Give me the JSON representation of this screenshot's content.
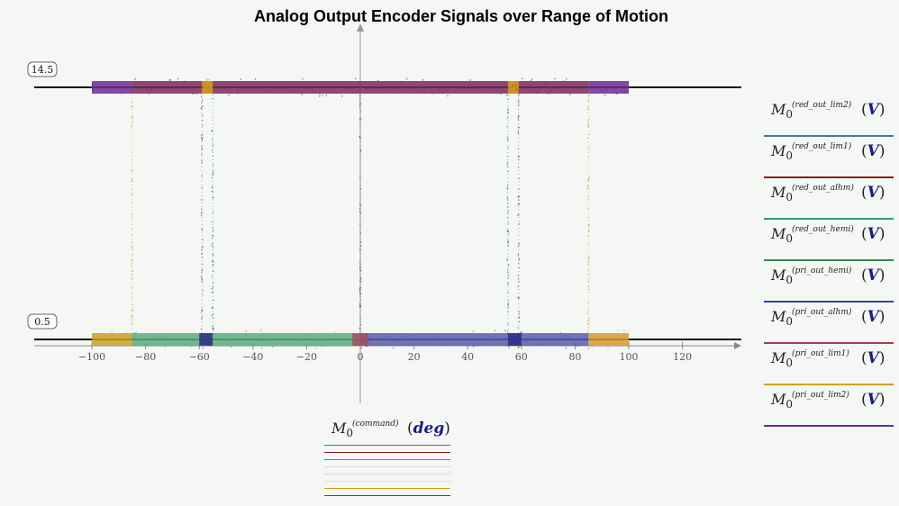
{
  "chart_data": {
    "type": "scatter",
    "title": "Analog Output Encoder Signals over Range of Motion",
    "xlabel": {
      "symbol": "M",
      "subscript": "0",
      "superscript": "(command)",
      "unit": "deg"
    },
    "xlim": [
      -120,
      140
    ],
    "ylim": [
      -2.5,
      17.5
    ],
    "x_ticks": [
      -100,
      -80,
      -60,
      -40,
      -20,
      0,
      20,
      40,
      60,
      80,
      100,
      120
    ],
    "x_tick_labels": [
      "−100",
      "−80",
      "−60",
      "−40",
      "−20",
      "0",
      "20",
      "40",
      "60",
      "80",
      "100",
      "120"
    ],
    "y_markers": [
      {
        "value": 14.5,
        "label": "14.5"
      },
      {
        "value": 0.5,
        "label": "0.5"
      }
    ],
    "grid": false,
    "legend_position": "right",
    "series": [
      {
        "name": "M0(red_out_lim2) (V)",
        "sub": "0",
        "sup": "(red_out_lim2)",
        "unit": "V",
        "color": "#3a7ca5",
        "segments": [
          {
            "x": [
              -100,
              0
            ],
            "y": 14.5
          },
          {
            "x": [
              0,
              100
            ],
            "y": 14.5
          }
        ]
      },
      {
        "name": "M0(red_out_lim1) (V)",
        "sub": "0",
        "sup": "(red_out_lim1)",
        "unit": "V",
        "color": "#8b1a1a",
        "segments": [
          {
            "x": [
              -100,
              100
            ],
            "y": 14.5
          }
        ]
      },
      {
        "name": "M0(red_out_alhm) (V)",
        "sub": "0",
        "sup": "(red_out_alhm)",
        "unit": "V",
        "color": "#2a9d8f",
        "segments": [
          {
            "x": [
              -100,
              100
            ],
            "y": 14.5
          }
        ]
      },
      {
        "name": "M0(red_out_hemi) (V)",
        "sub": "0",
        "sup": "(red_out_hemi)",
        "unit": "V",
        "color": "#2e8b57",
        "segments": [
          {
            "x": [
              -100,
              100
            ],
            "y": 14.5
          }
        ]
      },
      {
        "name": "M0(pri_out_hemi) (V)",
        "sub": "0",
        "sup": "(pri_out_hemi)",
        "unit": "V",
        "color": "#3b3bb0",
        "segments": [
          {
            "x": [
              0,
              100
            ],
            "y": 0.5
          },
          {
            "x": [
              -100,
              0
            ],
            "y": 14.5
          }
        ]
      },
      {
        "name": "M0(pri_out_alhm) (V)",
        "sub": "0",
        "sup": "(pri_out_alhm)",
        "unit": "V",
        "color": "#a04050",
        "segments": [
          {
            "x": [
              -100,
              100
            ],
            "y": 14.5
          }
        ]
      },
      {
        "name": "M0(pri_out_lim1) (V)",
        "sub": "0",
        "sup": "(pri_out_lim1)",
        "unit": "V",
        "color": "#d4a017",
        "segments": [
          {
            "x": [
              -100,
              -57
            ],
            "y": 0.5
          },
          {
            "x": [
              57,
              100
            ],
            "y": 0.5
          },
          {
            "x": [
              -57,
              57
            ],
            "y": 14.5
          }
        ]
      },
      {
        "name": "M0(pri_out_lim2) (V)",
        "sub": "0",
        "sup": "(pri_out_lim2)",
        "unit": "V",
        "color": "#6a2c91",
        "segments": [
          {
            "x": [
              -85,
              85
            ],
            "y": 14.5
          },
          {
            "x": [
              -100,
              -85
            ],
            "y": 0.5
          },
          {
            "x": [
              85,
              100
            ],
            "y": 0.5
          }
        ]
      }
    ],
    "bands": [
      {
        "y": 14.5,
        "x": [
          -100,
          -85
        ],
        "color": "#6a2c91"
      },
      {
        "y": 14.5,
        "x": [
          -85,
          85
        ],
        "color": "#7a2a5a"
      },
      {
        "y": 14.5,
        "x": [
          85,
          100
        ],
        "color": "#6a2c91"
      },
      {
        "y": 14.5,
        "x": [
          -59,
          -55
        ],
        "color": "#d4a017"
      },
      {
        "y": 14.5,
        "x": [
          55,
          59
        ],
        "color": "#d4a017"
      },
      {
        "y": 0.5,
        "x": [
          -100,
          -85
        ],
        "color": "#c9a020"
      },
      {
        "y": 0.5,
        "x": [
          -85,
          0
        ],
        "color": "#5aab7a"
      },
      {
        "y": 0.5,
        "x": [
          0,
          85
        ],
        "color": "#5a5ab0"
      },
      {
        "y": 0.5,
        "x": [
          85,
          100
        ],
        "color": "#d49a30"
      },
      {
        "y": 0.5,
        "x": [
          -60,
          -55
        ],
        "color": "#2b2b8a"
      },
      {
        "y": 0.5,
        "x": [
          55,
          60
        ],
        "color": "#2b2b8a"
      },
      {
        "y": 0.5,
        "x": [
          -3,
          3
        ],
        "color": "#a05060"
      }
    ],
    "transitions": [
      {
        "x": -85,
        "color": "#d49a30"
      },
      {
        "x": -59,
        "color": "#4a4ab0"
      },
      {
        "x": -55,
        "color": "#3a5ab0"
      },
      {
        "x": 0,
        "color": "#6a4a6a"
      },
      {
        "x": 55,
        "color": "#3a5ab0"
      },
      {
        "x": 59,
        "color": "#4a4ab0"
      },
      {
        "x": 85,
        "color": "#d49a30"
      }
    ]
  },
  "x_legend_traces": [
    "#3a7ca5",
    "#8b1a1a",
    "#2a9d8f",
    "#dcdcdc",
    "#d8d8e8",
    "#dcdcdc",
    "#d4a017",
    "#6a2c91"
  ]
}
